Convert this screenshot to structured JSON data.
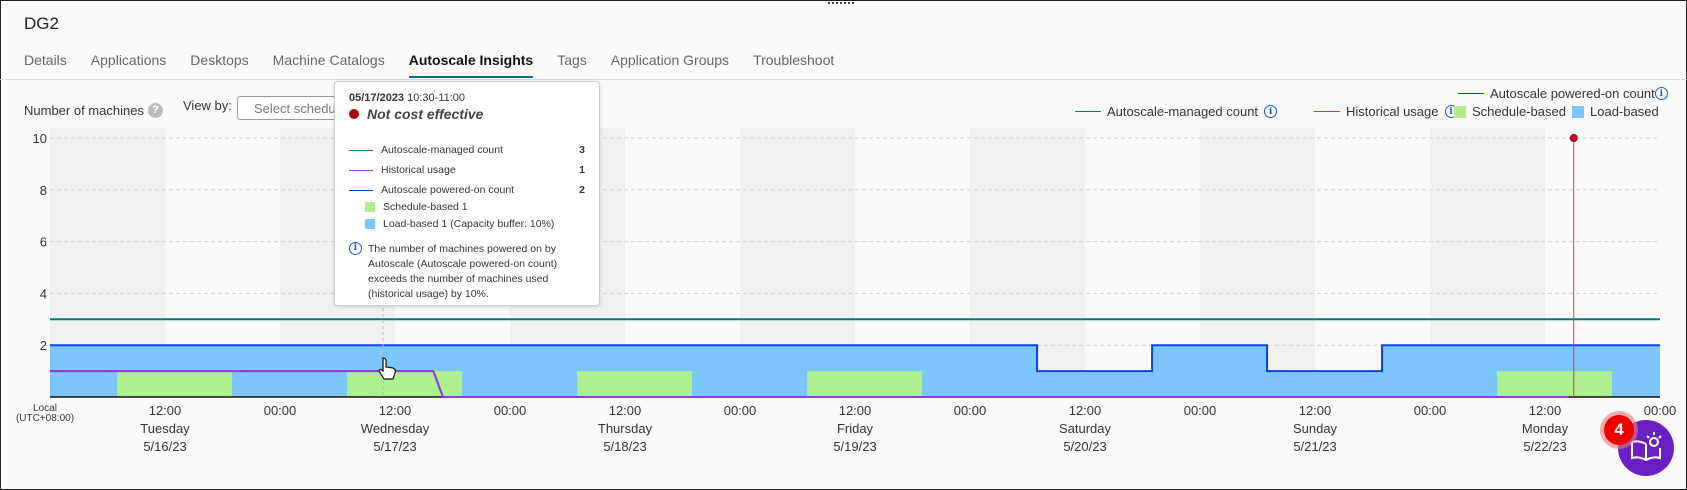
{
  "header": {
    "title": "DG2"
  },
  "tabs": [
    {
      "label": "Details",
      "active": false
    },
    {
      "label": "Applications",
      "active": false
    },
    {
      "label": "Desktops",
      "active": false
    },
    {
      "label": "Machine Catalogs",
      "active": false
    },
    {
      "label": "Autoscale Insights",
      "active": true
    },
    {
      "label": "Tags",
      "active": false
    },
    {
      "label": "Application Groups",
      "active": false
    },
    {
      "label": "Troubleshoot",
      "active": false
    }
  ],
  "controls": {
    "y_label": "Number of machines",
    "help_icon": "?",
    "view_by_label": "View by:",
    "view_by_placeholder": "Select schedule"
  },
  "legend": {
    "managed": "Autoscale-managed count",
    "historical": "Historical usage",
    "powered_on": "Autoscale powered-on count",
    "schedule": "Schedule-based",
    "load": "Load-based",
    "info_icon": "i"
  },
  "tooltip": {
    "date": "05/17/2023",
    "time": "10:30-11:00",
    "status": "Not cost effective",
    "rows": [
      {
        "label": "Autoscale-managed count",
        "value": "3"
      },
      {
        "label": "Historical usage",
        "value": "1"
      },
      {
        "label": "Autoscale powered-on count",
        "value": "2"
      }
    ],
    "sub": [
      "Schedule-based 1",
      "Load-based 1 (Capacity buffer: 10%)"
    ],
    "note": "The number of machines powered on by Autoscale (Autoscale powered-on count) exceeds the number of machines used (historical usage) by 10%."
  },
  "help_fab": {
    "badge": "4",
    "icon": "book-lightbulb-icon"
  },
  "colors": {
    "managed": "#0b7285",
    "historical": "#9333ea",
    "powered_on": "#0a45d8",
    "schedule": "#acf08f",
    "load": "#7cc5fd",
    "now_marker": "#e53935",
    "night_band": "#f0f0f0"
  },
  "chart_data": {
    "type": "area",
    "timezone_label": "Local\n(UTC+08:00)",
    "xlim": [
      "2023-05-16T00:00",
      "2023-05-23T00:00"
    ],
    "ylim": [
      0,
      10
    ],
    "yticks": [
      2,
      4,
      6,
      8,
      10
    ],
    "grid": true,
    "legend_placement": "top-right",
    "xticks": [
      {
        "t": "2023-05-16T12:00",
        "time": "12:00",
        "day": "Tuesday",
        "date": "5/16/23"
      },
      {
        "t": "2023-05-17T00:00",
        "time": "00:00",
        "day": "",
        "date": ""
      },
      {
        "t": "2023-05-17T12:00",
        "time": "12:00",
        "day": "Wednesday",
        "date": "5/17/23"
      },
      {
        "t": "2023-05-18T00:00",
        "time": "00:00",
        "day": "",
        "date": ""
      },
      {
        "t": "2023-05-18T12:00",
        "time": "12:00",
        "day": "Thursday",
        "date": "5/18/23"
      },
      {
        "t": "2023-05-19T00:00",
        "time": "00:00",
        "day": "",
        "date": ""
      },
      {
        "t": "2023-05-19T12:00",
        "time": "12:00",
        "day": "Friday",
        "date": "5/19/23"
      },
      {
        "t": "2023-05-20T00:00",
        "time": "00:00",
        "day": "",
        "date": ""
      },
      {
        "t": "2023-05-20T12:00",
        "time": "12:00",
        "day": "Saturday",
        "date": "5/20/23"
      },
      {
        "t": "2023-05-21T00:00",
        "time": "00:00",
        "day": "",
        "date": ""
      },
      {
        "t": "2023-05-21T12:00",
        "time": "12:00",
        "day": "Sunday",
        "date": "5/21/23"
      },
      {
        "t": "2023-05-22T00:00",
        "time": "00:00",
        "day": "",
        "date": ""
      },
      {
        "t": "2023-05-22T12:00",
        "time": "12:00",
        "day": "Monday",
        "date": "5/22/23"
      },
      {
        "t": "2023-05-23T00:00",
        "time": "00:00",
        "day": "",
        "date": ""
      }
    ],
    "series": [
      {
        "name": "Autoscale-managed count",
        "kind": "line",
        "points": [
          [
            "2023-05-16T00:00",
            3
          ],
          [
            "2023-05-23T00:00",
            3
          ]
        ]
      },
      {
        "name": "Autoscale powered-on count",
        "kind": "step",
        "points": [
          [
            "2023-05-16T00:00",
            2
          ],
          [
            "2023-05-20T07:00",
            1
          ],
          [
            "2023-05-20T19:00",
            2
          ],
          [
            "2023-05-21T07:00",
            1
          ],
          [
            "2023-05-21T19:00",
            2
          ],
          [
            "2023-05-23T00:00",
            2
          ]
        ]
      },
      {
        "name": "Schedule-based",
        "kind": "bars",
        "value": 1,
        "intervals": [
          [
            "2023-05-16T07:00",
            "2023-05-16T19:00"
          ],
          [
            "2023-05-17T07:00",
            "2023-05-17T19:00"
          ],
          [
            "2023-05-18T07:00",
            "2023-05-18T19:00"
          ],
          [
            "2023-05-19T07:00",
            "2023-05-19T19:00"
          ],
          [
            "2023-05-22T07:00",
            "2023-05-22T19:00"
          ]
        ]
      },
      {
        "name": "Historical usage",
        "kind": "line",
        "points": [
          [
            "2023-05-16T00:00",
            1
          ],
          [
            "2023-05-17T16:00",
            1
          ],
          [
            "2023-05-17T17:00",
            0
          ],
          [
            "2023-05-22T14:30",
            0
          ]
        ]
      }
    ],
    "now_marker": "2023-05-22T15:00",
    "hover": "2023-05-17T10:45"
  }
}
